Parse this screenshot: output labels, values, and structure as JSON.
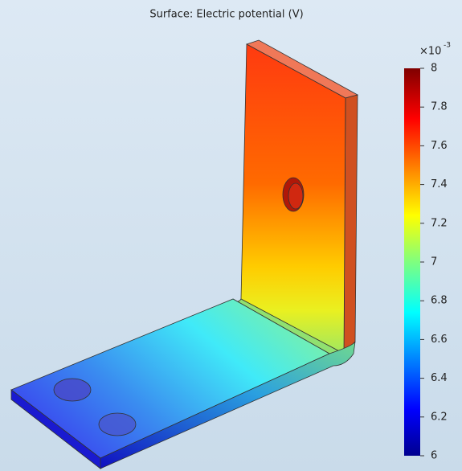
{
  "chart_data": {
    "type": "surface",
    "title": "Surface: Electric potential (V)",
    "colorbar": {
      "multiplier": "×10",
      "exponent": "-3",
      "clim": [
        6,
        8
      ],
      "ticks": [
        6,
        6.2,
        6.4,
        6.6,
        6.8,
        7,
        7.2,
        7.4,
        7.6,
        7.8,
        8
      ]
    }
  }
}
